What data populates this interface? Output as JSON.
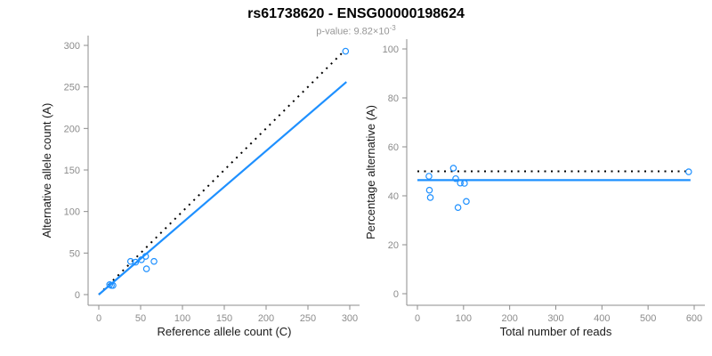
{
  "title": "rs61738620 - ENSG00000198624",
  "subtitle": {
    "text": "p-value: 9.82×10",
    "exponent": "-3"
  },
  "colors": {
    "accent": "#1E90FF",
    "dotted": "#000000",
    "axis": "#8c8c8c",
    "tick_label": "#8c8c8c",
    "axis_title": "#1a1a1a",
    "subtitle": "#979797"
  },
  "chart_data": [
    {
      "type": "scatter",
      "name": "ref-vs-alt-counts",
      "xlabel": "Reference allele count (C)",
      "ylabel": "Alternative allele count (A)",
      "xlim": [
        0,
        300
      ],
      "ylim": [
        0,
        300
      ],
      "xticks": [
        0,
        50,
        100,
        150,
        200,
        250,
        300
      ],
      "yticks": [
        0,
        50,
        100,
        150,
        200,
        250,
        300
      ],
      "grid": false,
      "points": [
        [
          13,
          12
        ],
        [
          15,
          11
        ],
        [
          17,
          11
        ],
        [
          38,
          40
        ],
        [
          44,
          39
        ],
        [
          51,
          42
        ],
        [
          56,
          46
        ],
        [
          66,
          40
        ],
        [
          57,
          31
        ],
        [
          295,
          293
        ]
      ],
      "lines": [
        {
          "name": "identity-line",
          "style": "dotted",
          "color": "dotted",
          "x1": 0,
          "y1": 0,
          "x2": 293,
          "y2": 293
        },
        {
          "name": "fit-line",
          "style": "solid",
          "color": "accent",
          "x1": 0,
          "y1": 0,
          "x2": 296,
          "y2": 256
        }
      ]
    },
    {
      "type": "scatter",
      "name": "pct-alternative-vs-total-reads",
      "xlabel": "Total number of reads",
      "ylabel": "Percentage alternative (A)",
      "xlim": [
        0,
        600
      ],
      "ylim": [
        0,
        100
      ],
      "xticks": [
        0,
        100,
        200,
        300,
        400,
        500,
        600
      ],
      "yticks": [
        0,
        20,
        40,
        60,
        80,
        100
      ],
      "grid": false,
      "points": [
        [
          25,
          48.0
        ],
        [
          26,
          42.3
        ],
        [
          28,
          39.3
        ],
        [
          78,
          51.3
        ],
        [
          83,
          47.0
        ],
        [
          93,
          45.2
        ],
        [
          102,
          45.1
        ],
        [
          106,
          37.7
        ],
        [
          88,
          35.2
        ],
        [
          588,
          49.8
        ]
      ],
      "lines": [
        {
          "name": "expected-50pct-line",
          "style": "dotted",
          "color": "dotted",
          "x1": 0,
          "y1": 50,
          "x2": 592,
          "y2": 50
        },
        {
          "name": "mean-pct-line",
          "style": "solid",
          "color": "accent",
          "x1": 0,
          "y1": 46.4,
          "x2": 592,
          "y2": 46.4
        }
      ]
    }
  ]
}
